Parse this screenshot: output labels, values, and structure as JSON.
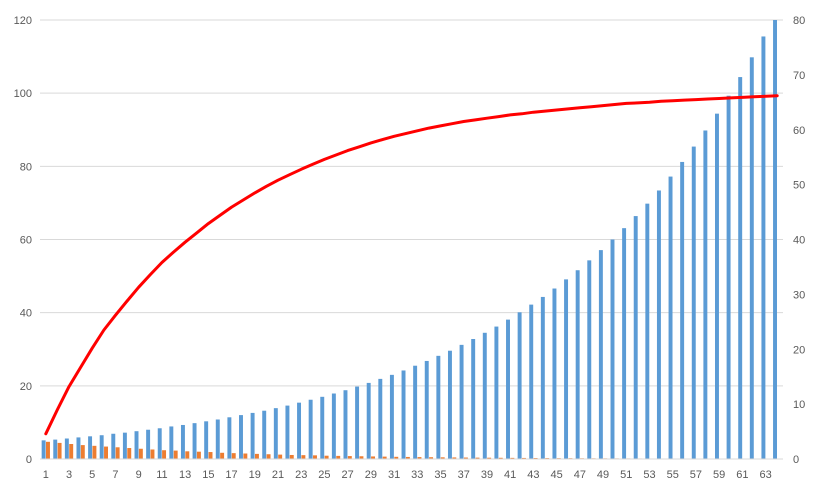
{
  "chart_data": {
    "type": "bar",
    "x_tick_labels": [
      "1",
      "3",
      "5",
      "7",
      "9",
      "11",
      "13",
      "15",
      "17",
      "19",
      "21",
      "23",
      "25",
      "27",
      "29",
      "31",
      "33",
      "35",
      "37",
      "39",
      "41",
      "43",
      "45",
      "47",
      "49",
      "51",
      "53",
      "55",
      "57",
      "59",
      "61",
      "63"
    ],
    "left_axis": {
      "ylim": [
        0,
        120
      ],
      "ticks": [
        "0",
        "20",
        "40",
        "60",
        "80",
        "100",
        "120"
      ]
    },
    "right_axis": {
      "ylim": [
        0,
        80
      ],
      "ticks": [
        "0",
        "10",
        "20",
        "30",
        "40",
        "50",
        "60",
        "70",
        "80"
      ]
    },
    "grid": true,
    "legend": "none",
    "series": [
      {
        "type": "bar",
        "axis": "left",
        "color": "#5B9BD5",
        "x": [
          1,
          2,
          3,
          4,
          5,
          6,
          7,
          8,
          9,
          10,
          11,
          12,
          13,
          14,
          15,
          16,
          17,
          18,
          19,
          20,
          21,
          22,
          23,
          24,
          25,
          26,
          27,
          28,
          29,
          30,
          31,
          32,
          33,
          34,
          35,
          36,
          37,
          38,
          39,
          40,
          41,
          42,
          43,
          44,
          45,
          46,
          47,
          48,
          49,
          50,
          51,
          52,
          53,
          54,
          55,
          56,
          57,
          58,
          59,
          60,
          61,
          62,
          63,
          64
        ],
        "values": [
          5.1,
          5.3,
          5.6,
          5.9,
          6.2,
          6.5,
          6.9,
          7.2,
          7.6,
          8.0,
          8.4,
          8.9,
          9.3,
          9.8,
          10.3,
          10.8,
          11.4,
          12.0,
          12.6,
          13.2,
          13.9,
          14.6,
          15.4,
          16.2,
          17.0,
          17.9,
          18.8,
          19.8,
          20.8,
          21.9,
          23.0,
          24.2,
          25.5,
          26.8,
          28.2,
          29.6,
          31.2,
          32.8,
          34.5,
          36.2,
          38.1,
          40.1,
          42.2,
          44.3,
          46.6,
          49.1,
          51.6,
          54.3,
          57.1,
          60.0,
          63.1,
          66.4,
          69.8,
          73.4,
          77.2,
          81.2,
          85.4,
          89.8,
          94.4,
          99.3,
          104.4,
          109.8,
          115.5,
          121.5
        ]
      },
      {
        "type": "bar",
        "axis": "left",
        "color": "#ED7D31",
        "x": [
          1,
          2,
          3,
          4,
          5,
          6,
          7,
          8,
          9,
          10,
          11,
          12,
          13,
          14,
          15,
          16,
          17,
          18,
          19,
          20,
          21,
          22,
          23,
          24,
          25,
          26,
          27,
          28,
          29,
          30,
          31,
          32,
          33,
          34,
          35,
          36,
          37,
          38,
          39,
          40,
          41,
          42,
          43,
          44,
          45,
          46,
          47,
          48,
          49,
          50,
          51,
          52,
          53,
          54,
          55,
          56,
          57,
          58,
          59,
          60,
          61,
          62,
          63,
          64
        ],
        "values": [
          4.7,
          4.4,
          4.1,
          3.8,
          3.6,
          3.4,
          3.2,
          3.0,
          2.8,
          2.6,
          2.4,
          2.3,
          2.1,
          2.0,
          1.9,
          1.7,
          1.6,
          1.5,
          1.4,
          1.3,
          1.2,
          1.1,
          1.05,
          1.0,
          0.9,
          0.85,
          0.8,
          0.75,
          0.7,
          0.65,
          0.6,
          0.56,
          0.52,
          0.49,
          0.46,
          0.43,
          0.4,
          0.37,
          0.35,
          0.33,
          0.31,
          0.29,
          0.27,
          0.25,
          0.23,
          0.22,
          0.2,
          0.19,
          0.18,
          0.17,
          0.16,
          0.15,
          0.14,
          0.13,
          0.12,
          0.11,
          0.1,
          0.1,
          0.09,
          0.08,
          0.08,
          0.07,
          0.07,
          0.06
        ]
      },
      {
        "type": "line",
        "axis": "right",
        "color": "#FF0000",
        "x": [
          1,
          2,
          3,
          4,
          5,
          6,
          7,
          8,
          9,
          10,
          11,
          12,
          13,
          14,
          15,
          16,
          17,
          18,
          19,
          20,
          21,
          22,
          23,
          24,
          25,
          26,
          27,
          28,
          29,
          30,
          31,
          32,
          33,
          34,
          35,
          36,
          37,
          38,
          39,
          40,
          41,
          42,
          43,
          44,
          45,
          46,
          47,
          48,
          49,
          50,
          51,
          52,
          53,
          54,
          55,
          56,
          57,
          58,
          59,
          60,
          61,
          62,
          63,
          64
        ],
        "values": [
          4.6,
          9.0,
          13.2,
          16.7,
          20.2,
          23.5,
          26.2,
          28.8,
          31.3,
          33.6,
          35.8,
          37.7,
          39.5,
          41.2,
          42.9,
          44.4,
          45.9,
          47.2,
          48.5,
          49.7,
          50.8,
          51.8,
          52.8,
          53.7,
          54.6,
          55.4,
          56.2,
          56.9,
          57.6,
          58.2,
          58.8,
          59.3,
          59.8,
          60.3,
          60.7,
          61.1,
          61.5,
          61.8,
          62.1,
          62.4,
          62.7,
          62.9,
          63.2,
          63.4,
          63.6,
          63.8,
          64.0,
          64.2,
          64.4,
          64.6,
          64.8,
          64.9,
          65.0,
          65.2,
          65.3,
          65.4,
          65.5,
          65.6,
          65.7,
          65.8,
          65.9,
          66.0,
          66.1,
          66.2
        ]
      }
    ]
  }
}
